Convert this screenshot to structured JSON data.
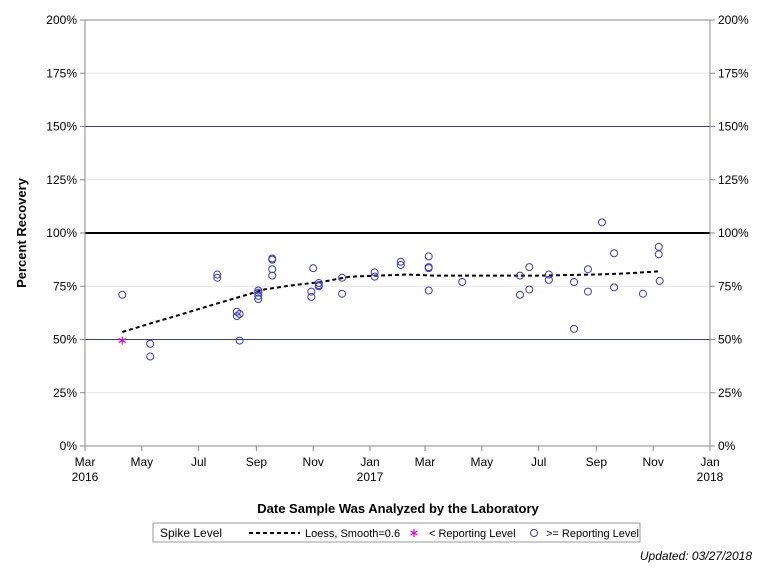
{
  "chart_data": {
    "type": "scatter",
    "xlabel": "Date Sample Was Analyzed by the Laboratory",
    "ylabel": "Percent Recovery",
    "xlim": [
      "2016-03-01",
      "2018-01-01"
    ],
    "ylim": [
      0,
      200
    ],
    "x_ticks": [
      {
        "date": "2016-03-01",
        "label": "Mar",
        "year": "2016"
      },
      {
        "date": "2016-05-01",
        "label": "May",
        "year": ""
      },
      {
        "date": "2016-07-01",
        "label": "Jul",
        "year": ""
      },
      {
        "date": "2016-09-01",
        "label": "Sep",
        "year": ""
      },
      {
        "date": "2016-11-01",
        "label": "Nov",
        "year": ""
      },
      {
        "date": "2017-01-01",
        "label": "Jan",
        "year": "2017"
      },
      {
        "date": "2017-03-01",
        "label": "Mar",
        "year": ""
      },
      {
        "date": "2017-05-01",
        "label": "May",
        "year": ""
      },
      {
        "date": "2017-07-01",
        "label": "Jul",
        "year": ""
      },
      {
        "date": "2017-09-01",
        "label": "Sep",
        "year": ""
      },
      {
        "date": "2017-11-01",
        "label": "Nov",
        "year": ""
      },
      {
        "date": "2018-01-01",
        "label": "Jan",
        "year": "2018"
      }
    ],
    "y_ticks": [
      0,
      25,
      50,
      75,
      100,
      125,
      150,
      175,
      200
    ],
    "y_tick_labels": [
      "0%",
      "25%",
      "50%",
      "75%",
      "100%",
      "125%",
      "150%",
      "175%",
      "200%"
    ],
    "grid": true,
    "reference_lines": [
      {
        "y": 100,
        "color": "#000000",
        "width": 2
      },
      {
        "y": 50,
        "color": "#3b3bb0",
        "width": 1
      },
      {
        "y": 150,
        "color": "#3b3bb0",
        "width": 1
      }
    ],
    "series": [
      {
        "name": ">= Reporting Level",
        "marker": "circle",
        "color": "#3a3ac8",
        "points": [
          [
            "2016-04-10",
            71
          ],
          [
            "2016-05-10",
            48
          ],
          [
            "2016-05-10",
            42
          ],
          [
            "2016-07-21",
            80.5
          ],
          [
            "2016-07-21",
            79
          ],
          [
            "2016-08-11",
            63
          ],
          [
            "2016-08-11",
            61
          ],
          [
            "2016-08-14",
            62
          ],
          [
            "2016-08-14",
            49.5
          ],
          [
            "2016-09-03",
            73
          ],
          [
            "2016-09-03",
            72
          ],
          [
            "2016-09-03",
            70.5
          ],
          [
            "2016-09-03",
            69
          ],
          [
            "2016-09-18",
            88
          ],
          [
            "2016-09-18",
            87.5
          ],
          [
            "2016-09-18",
            83
          ],
          [
            "2016-09-18",
            80
          ],
          [
            "2016-10-30",
            72.5
          ],
          [
            "2016-10-30",
            70
          ],
          [
            "2016-11-01",
            83.5
          ],
          [
            "2016-11-07",
            76.5
          ],
          [
            "2016-11-07",
            75.5
          ],
          [
            "2016-11-07",
            75
          ],
          [
            "2016-12-02",
            79
          ],
          [
            "2016-12-02",
            71.5
          ],
          [
            "2017-01-06",
            81.5
          ],
          [
            "2017-01-06",
            79.5
          ],
          [
            "2017-02-03",
            86.5
          ],
          [
            "2017-02-03",
            85
          ],
          [
            "2017-03-05",
            89
          ],
          [
            "2017-03-05",
            84
          ],
          [
            "2017-03-05",
            83.5
          ],
          [
            "2017-03-05",
            73
          ],
          [
            "2017-04-10",
            77
          ],
          [
            "2017-06-11",
            80
          ],
          [
            "2017-06-11",
            71
          ],
          [
            "2017-06-21",
            84
          ],
          [
            "2017-06-21",
            73.5
          ],
          [
            "2017-07-12",
            80.5
          ],
          [
            "2017-07-12",
            78
          ],
          [
            "2017-08-08",
            77
          ],
          [
            "2017-08-08",
            55
          ],
          [
            "2017-08-23",
            83
          ],
          [
            "2017-08-23",
            72.5
          ],
          [
            "2017-09-07",
            105
          ],
          [
            "2017-09-20",
            90.5
          ],
          [
            "2017-09-20",
            74.5
          ],
          [
            "2017-10-21",
            71.5
          ],
          [
            "2017-11-07",
            93.5
          ],
          [
            "2017-11-07",
            90
          ],
          [
            "2017-11-08",
            77.5
          ]
        ]
      },
      {
        "name": "< Reporting Level",
        "marker": "asterisk",
        "color": "#e000e0",
        "points": [
          [
            "2016-04-10",
            49.5
          ]
        ]
      },
      {
        "name": "Loess, Smooth=0.6",
        "marker": "dashed-line",
        "color": "#000000",
        "points": [
          [
            "2016-04-10",
            53.5
          ],
          [
            "2016-05-10",
            57.5
          ],
          [
            "2016-06-10",
            61.5
          ],
          [
            "2016-07-10",
            65.5
          ],
          [
            "2016-08-10",
            69.5
          ],
          [
            "2016-09-10",
            73.5
          ],
          [
            "2016-10-10",
            75.5
          ],
          [
            "2016-11-10",
            77
          ],
          [
            "2016-12-10",
            79.5
          ],
          [
            "2017-01-10",
            80
          ],
          [
            "2017-02-10",
            80.5
          ],
          [
            "2017-03-10",
            80
          ],
          [
            "2017-05-01",
            80
          ],
          [
            "2017-07-01",
            80
          ],
          [
            "2017-09-01",
            80.5
          ],
          [
            "2017-10-01",
            81
          ],
          [
            "2017-11-08",
            82
          ]
        ]
      }
    ],
    "legend": {
      "position": "bottom",
      "title": "Spike Level",
      "entries": [
        {
          "label": "Loess, Smooth=0.6",
          "symbol": "dashed-line",
          "color": "#000000"
        },
        {
          "label": "< Reporting Level",
          "symbol": "asterisk",
          "color": "#e000e0"
        },
        {
          "label": ">= Reporting Level",
          "symbol": "circle",
          "color": "#3a3ac8"
        }
      ]
    }
  },
  "footnote": "Updated: 03/27/2018"
}
